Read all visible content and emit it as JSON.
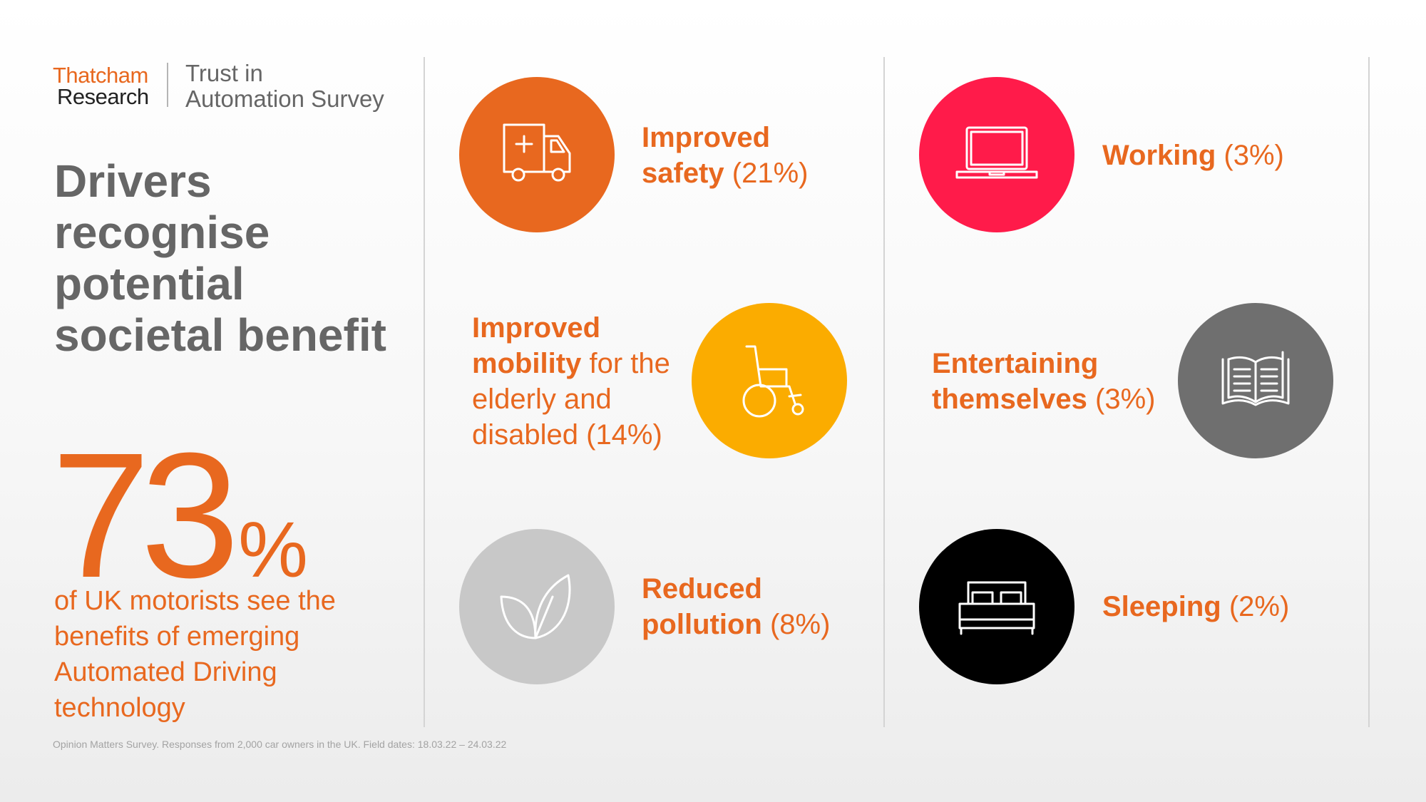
{
  "brand": {
    "logo_line1": "Thatcham",
    "logo_line2": "Research",
    "survey_line1": "Trust in",
    "survey_line2": "Automation Survey"
  },
  "headline": [
    "Drivers",
    "recognise",
    "potential",
    "societal benefit"
  ],
  "stat": {
    "value": "73",
    "unit": "%",
    "caption": [
      "of UK motorists see the",
      "benefits of emerging",
      "Automated Driving",
      "technology"
    ]
  },
  "footnote": "Opinion Matters Survey. Responses from 2,000 car owners in the UK. Field dates: 18.03.22 – 24.03.22",
  "benefits": [
    {
      "bold": [
        "Improved",
        "safety"
      ],
      "pct": "(21%)",
      "icon": "ambulance-icon",
      "color": "#e8681f"
    },
    {
      "bold": [
        "Improved",
        "mobility"
      ],
      "rest": [
        "for the",
        "elderly and",
        "disabled (14%)"
      ],
      "icon": "wheelchair-icon",
      "color": "#fbac00"
    },
    {
      "bold": [
        "Reduced",
        "pollution"
      ],
      "pct": "(8%)",
      "icon": "leaf-icon",
      "color": "#c8c8c8"
    },
    {
      "bold": [
        "Working"
      ],
      "pct": "(3%)",
      "icon": "laptop-icon",
      "color": "#ff1b4a"
    },
    {
      "bold": [
        "Entertaining",
        "themselves"
      ],
      "pct": "(3%)",
      "icon": "book-icon",
      "color": "#6f6f6f"
    },
    {
      "bold": [
        "Sleeping"
      ],
      "pct": "(2%)",
      "icon": "bed-icon",
      "color": "#000000"
    }
  ]
}
